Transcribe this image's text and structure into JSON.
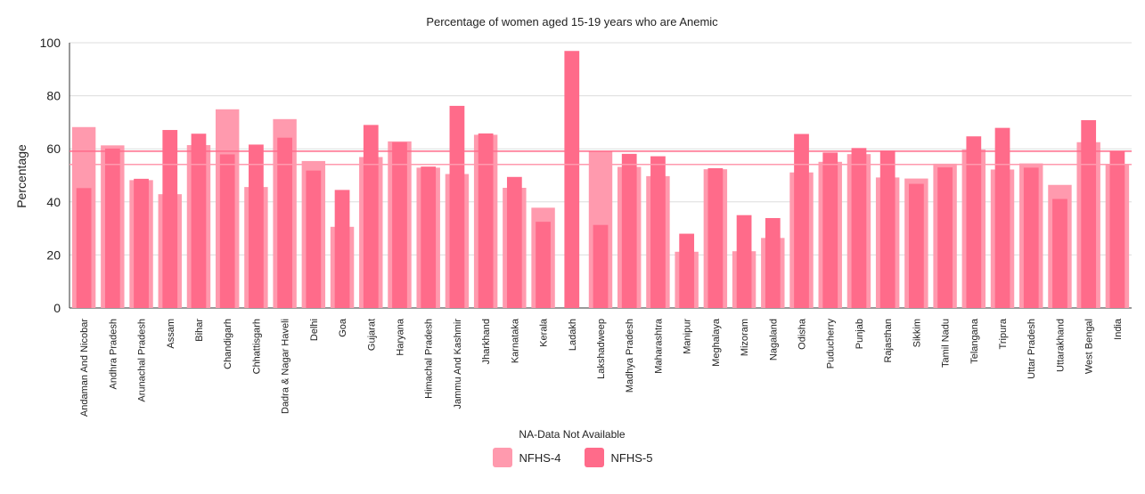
{
  "chart_data": {
    "type": "bar",
    "title": "Percentage of women aged 15-19 years who are Anemic",
    "ylabel": "Percentage",
    "xlabel": "",
    "ylim": [
      0,
      100
    ],
    "yticks": [
      0,
      20,
      40,
      60,
      80,
      100
    ],
    "note": "NA-Data Not Available",
    "legend_position": "bottom",
    "grid": true,
    "categories": [
      "Andaman And Nicobar",
      "Andhra Pradesh",
      "Arunachal Pradesh",
      "Assam",
      "Bihar",
      "Chandigarh",
      "Chhattisgarh",
      "Dadra & Nagar Haveli",
      "Delhi",
      "Goa",
      "Gujarat",
      "Haryana",
      "Himachal Pradesh",
      "Jammu And Kashmir",
      "Jharkhand",
      "Karnataka",
      "Kerala",
      "Ladakh",
      "Lakshadweep",
      "Madhya Pradesh",
      "Maharashtra",
      "Manipur",
      "Meghalaya",
      "Mizoram",
      "Nagaland",
      "Odisha",
      "Puducherry",
      "Punjab",
      "Rajasthan",
      "Sikkim",
      "Tamil Nadu",
      "Telangana",
      "Tripura",
      "Uttar Pradesh",
      "Uttarakhand",
      "West Bengal",
      "India"
    ],
    "series": [
      {
        "name": "NFHS-4",
        "color": "#ff9aae",
        "values": [
          68.2,
          61.3,
          48.2,
          42.9,
          61.4,
          74.9,
          45.6,
          71.2,
          55.4,
          30.6,
          56.9,
          62.8,
          52.9,
          50.5,
          65.3,
          45.3,
          37.8,
          null,
          59.0,
          53.2,
          49.7,
          21.2,
          52.3,
          21.4,
          26.4,
          51.1,
          55.1,
          58.0,
          49.2,
          48.8,
          54.4,
          59.7,
          52.2,
          54.5,
          46.4,
          62.5,
          54.1
        ]
      },
      {
        "name": "NFHS-5",
        "color": "#ff6b8a",
        "values": [
          45.2,
          60.1,
          48.7,
          67.1,
          65.7,
          57.9,
          61.6,
          64.2,
          51.8,
          44.5,
          69.0,
          62.5,
          53.3,
          76.2,
          65.8,
          49.4,
          32.5,
          96.9,
          31.3,
          58.1,
          57.2,
          28.0,
          52.7,
          35.0,
          33.9,
          65.6,
          58.6,
          60.3,
          59.4,
          46.8,
          53.0,
          64.7,
          67.9,
          52.9,
          41.1,
          70.8,
          59.1
        ]
      }
    ]
  }
}
